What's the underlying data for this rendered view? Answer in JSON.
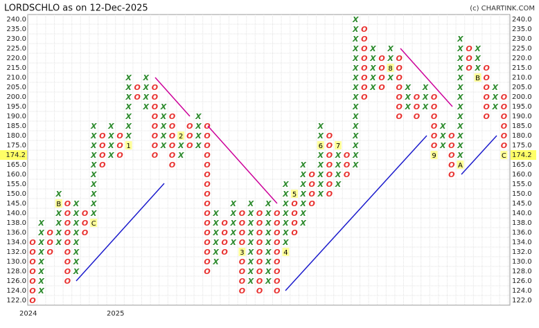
{
  "chart_data": {
    "type": "point-and-figure",
    "title": "LORDSCHLO as on 12-Dec-2025",
    "credit": "(c) CHARTINK.COM",
    "ylim": [
      122,
      240
    ],
    "yticks": [
      {
        "value": 122,
        "label": "122.0"
      },
      {
        "value": 124,
        "label": "124.0"
      },
      {
        "value": 126,
        "label": "126.0"
      },
      {
        "value": 128,
        "label": "128.0"
      },
      {
        "value": 130,
        "label": "130.0"
      },
      {
        "value": 132,
        "label": "132.0"
      },
      {
        "value": 134,
        "label": "134.0"
      },
      {
        "value": 136,
        "label": "136.0"
      },
      {
        "value": 138,
        "label": "138.0"
      },
      {
        "value": 140,
        "label": "140.0"
      },
      {
        "value": 145,
        "label": "145.0"
      },
      {
        "value": 150,
        "label": "150.0"
      },
      {
        "value": 155,
        "label": "155.0"
      },
      {
        "value": 160,
        "label": "160.0"
      },
      {
        "value": 165,
        "label": "165.0"
      },
      {
        "value": 175,
        "label": "175.0"
      },
      {
        "value": 180,
        "label": "180.0"
      },
      {
        "value": 185,
        "label": "185.0"
      },
      {
        "value": 190,
        "label": "190.0"
      },
      {
        "value": 195,
        "label": "195.0"
      },
      {
        "value": 200,
        "label": "200.0"
      },
      {
        "value": 205,
        "label": "205.0"
      },
      {
        "value": 210,
        "label": "210.0"
      },
      {
        "value": 215,
        "label": "215.0"
      },
      {
        "value": 220,
        "label": "220.0"
      },
      {
        "value": 225,
        "label": "225.0"
      },
      {
        "value": 230,
        "label": "230.0"
      },
      {
        "value": 235,
        "label": "235.0"
      },
      {
        "value": 240,
        "label": "240.0"
      }
    ],
    "last_price": 174.2,
    "colors": {
      "X": "#2e8b2e",
      "O": "#e8312f"
    },
    "columns": [
      {
        "type": "O",
        "high": 134,
        "low": 122,
        "year": "2024"
      },
      {
        "type": "X",
        "high": 138,
        "low": 124
      },
      {
        "type": "O",
        "high": 136,
        "low": 132
      },
      {
        "type": "X",
        "high": 150,
        "low": 134,
        "marker": {
          "value": 145,
          "label": "B"
        }
      },
      {
        "type": "O",
        "high": 145,
        "low": 126
      },
      {
        "type": "X",
        "high": 145,
        "low": 128
      },
      {
        "type": "O",
        "high": 140,
        "low": 136
      },
      {
        "type": "X",
        "high": 185,
        "low": 138,
        "marker": {
          "value": 138,
          "label": "C"
        }
      },
      {
        "type": "O",
        "high": 180,
        "low": 165
      },
      {
        "type": "X",
        "high": 185,
        "low": 170
      },
      {
        "type": "O",
        "high": 180,
        "low": 170,
        "year": "2025"
      },
      {
        "type": "X",
        "high": 210,
        "low": 175,
        "marker": {
          "value": 175,
          "label": "1"
        }
      },
      {
        "type": "O",
        "high": 205,
        "low": 200
      },
      {
        "type": "X",
        "high": 210,
        "low": 195
      },
      {
        "type": "O",
        "high": 205,
        "low": 170
      },
      {
        "type": "X",
        "high": 195,
        "low": 175
      },
      {
        "type": "O",
        "high": 190,
        "low": 165
      },
      {
        "type": "X",
        "high": 180,
        "low": 170,
        "marker": {
          "value": 180,
          "label": "2"
        }
      },
      {
        "type": "O",
        "high": 185,
        "low": 175
      },
      {
        "type": "X",
        "high": 190,
        "low": 175
      },
      {
        "type": "O",
        "high": 185,
        "low": 128
      },
      {
        "type": "X",
        "high": 140,
        "low": 130
      },
      {
        "type": "O",
        "high": 138,
        "low": 132
      },
      {
        "type": "X",
        "high": 145,
        "low": 134
      },
      {
        "type": "O",
        "high": 140,
        "low": 124,
        "marker": {
          "value": 132,
          "label": "3"
        }
      },
      {
        "type": "X",
        "high": 145,
        "low": 126
      },
      {
        "type": "O",
        "high": 140,
        "low": 124
      },
      {
        "type": "X",
        "high": 145,
        "low": 126
      },
      {
        "type": "O",
        "high": 140,
        "low": 124
      },
      {
        "type": "X",
        "high": 155,
        "low": 132,
        "marker": {
          "value": 132,
          "label": "4"
        }
      },
      {
        "type": "O",
        "high": 150,
        "low": 136,
        "marker": {
          "value": 150,
          "label": "5"
        }
      },
      {
        "type": "X",
        "high": 165,
        "low": 138
      },
      {
        "type": "O",
        "high": 160,
        "low": 145
      },
      {
        "type": "X",
        "high": 185,
        "low": 150,
        "marker": {
          "value": 175,
          "label": "6"
        }
      },
      {
        "type": "O",
        "high": 180,
        "low": 150
      },
      {
        "type": "X",
        "high": 175,
        "low": 155,
        "marker": {
          "value": 175,
          "label": "7"
        }
      },
      {
        "type": "O",
        "high": 170,
        "low": 160
      },
      {
        "type": "X",
        "high": 240,
        "low": 165
      },
      {
        "type": "O",
        "high": 235,
        "low": 200
      },
      {
        "type": "X",
        "high": 225,
        "low": 205
      },
      {
        "type": "O",
        "high": 220,
        "low": 205
      },
      {
        "type": "X",
        "high": 225,
        "low": 210,
        "marker": {
          "value": 215,
          "label": "8"
        }
      },
      {
        "type": "O",
        "high": 220,
        "low": 190
      },
      {
        "type": "X",
        "high": 205,
        "low": 195
      },
      {
        "type": "O",
        "high": 200,
        "low": 190
      },
      {
        "type": "X",
        "high": 205,
        "low": 195
      },
      {
        "type": "O",
        "high": 200,
        "low": 170,
        "marker": {
          "value": 170,
          "label": "9"
        }
      },
      {
        "type": "X",
        "high": 185,
        "low": 175
      },
      {
        "type": "O",
        "high": 180,
        "low": 160
      },
      {
        "type": "X",
        "high": 230,
        "low": 165,
        "marker": {
          "value": 165,
          "label": "A"
        }
      },
      {
        "type": "O",
        "high": 225,
        "low": 215
      },
      {
        "type": "X",
        "high": 225,
        "low": 210,
        "marker": {
          "value": 210,
          "label": "B"
        }
      },
      {
        "type": "O",
        "high": 215,
        "low": 190
      },
      {
        "type": "X",
        "high": 205,
        "low": 195
      },
      {
        "type": "O",
        "high": 200,
        "low": 170,
        "marker": {
          "value": 170,
          "label": "C"
        }
      }
    ]
  }
}
